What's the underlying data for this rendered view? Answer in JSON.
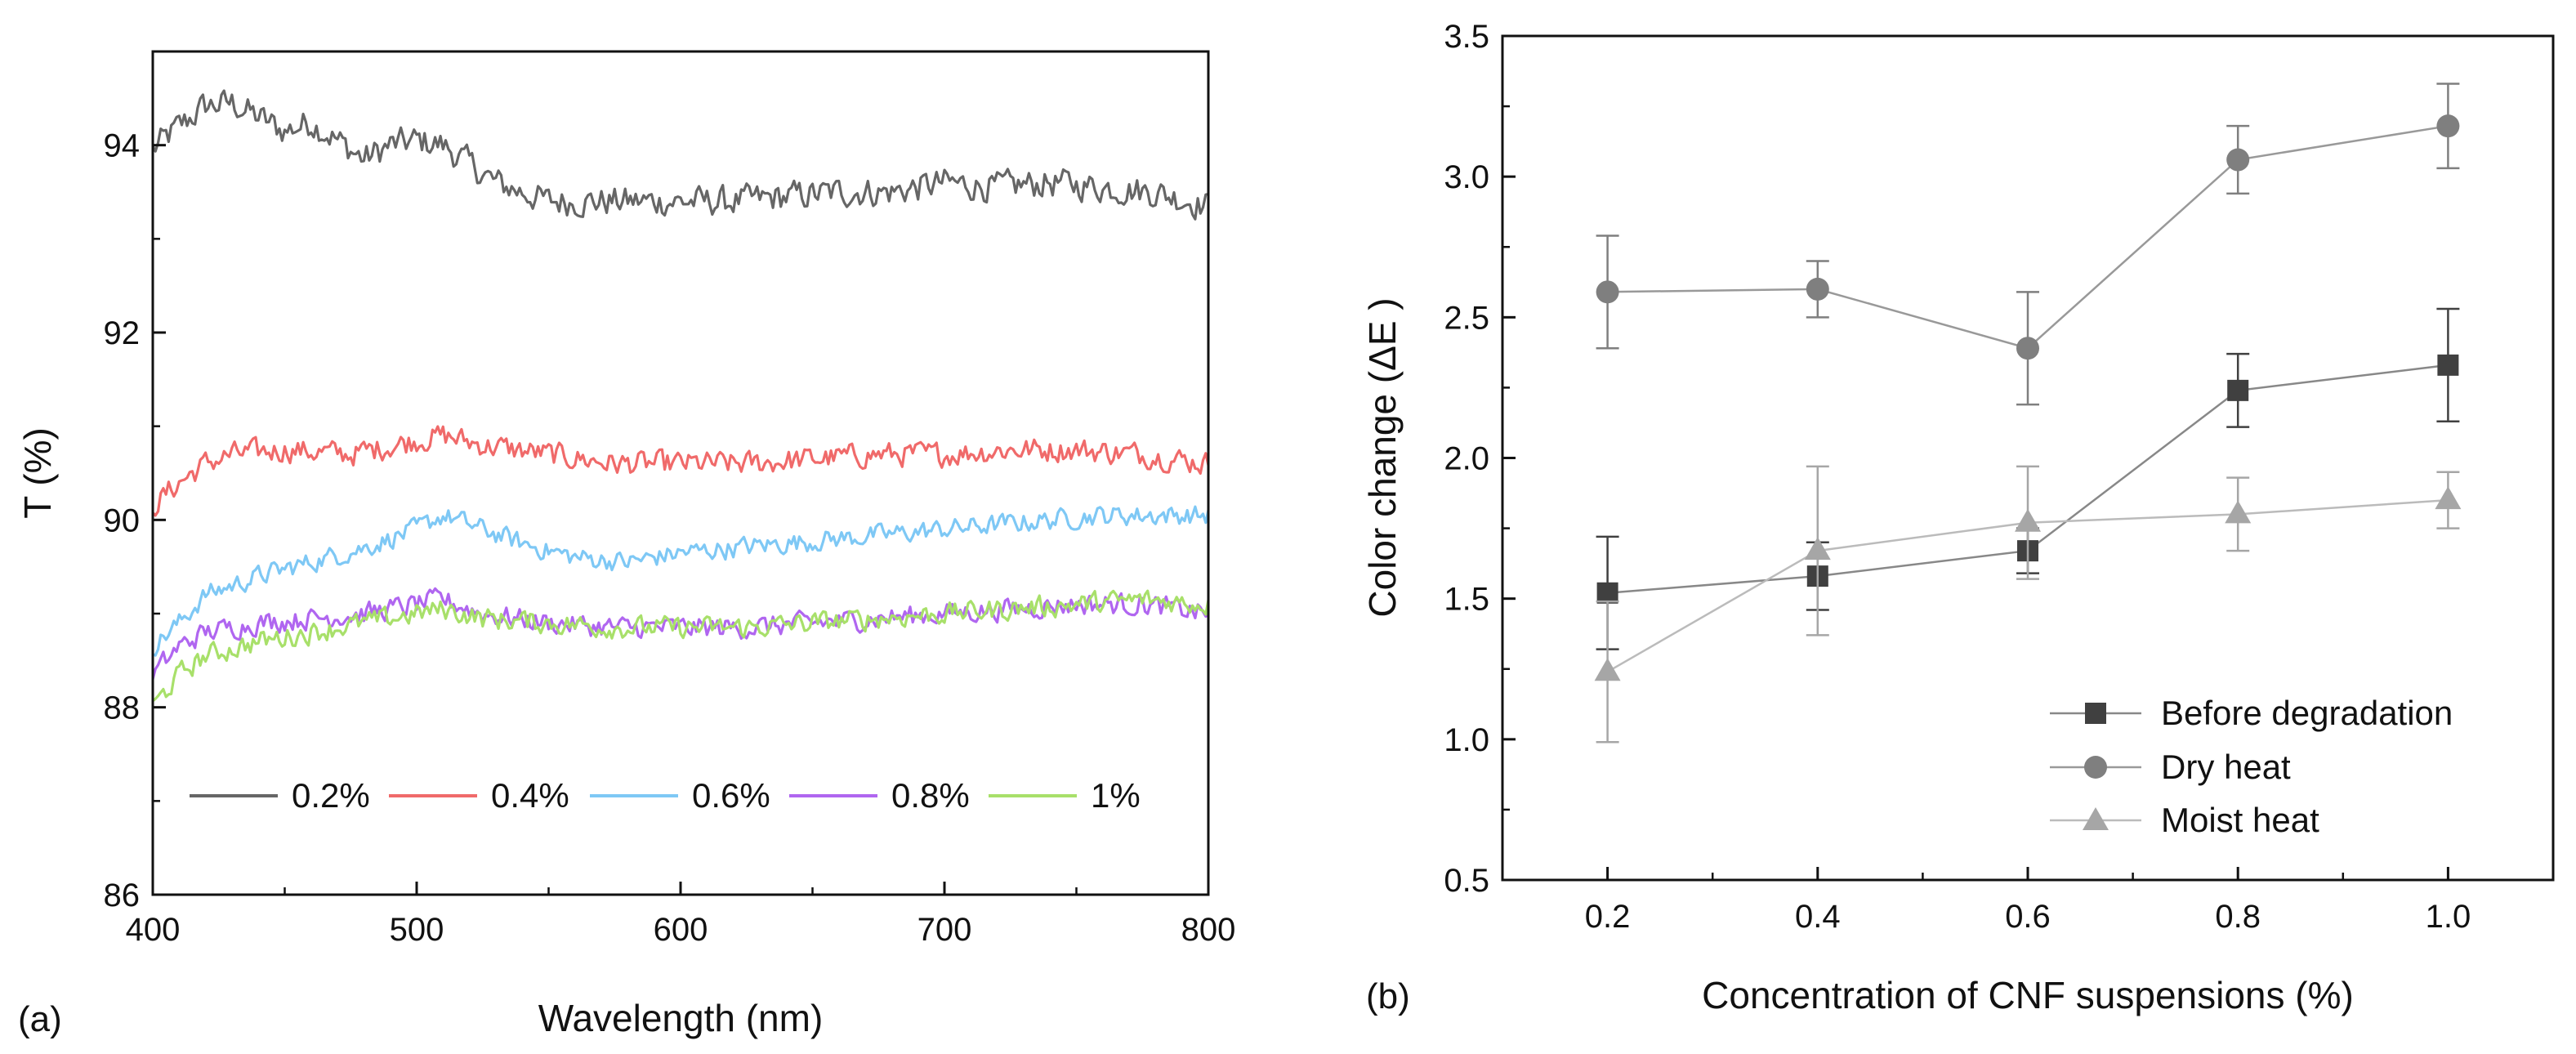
{
  "chart_data": [
    {
      "panel_label": "(a)",
      "type": "line",
      "xlabel": "Wavelength (nm)",
      "ylabel": "T (%)",
      "xlim": [
        400,
        800
      ],
      "ylim": [
        86,
        95
      ],
      "x_ticks": [
        "400",
        "500",
        "600",
        "700",
        "800"
      ],
      "y_ticks": [
        "86",
        "88",
        "90",
        "92",
        "94"
      ],
      "legend_position": "bottom-center",
      "noise_amplitude": [
        0.22,
        0.18,
        0.15,
        0.16,
        0.16
      ],
      "series": [
        {
          "name": "0.2%",
          "color": "#666666",
          "x": [
            400,
            410,
            420,
            430,
            440,
            450,
            460,
            470,
            480,
            490,
            500,
            510,
            520,
            530,
            540,
            550,
            560,
            580,
            600,
            620,
            640,
            660,
            680,
            700,
            720,
            740,
            760,
            780,
            800
          ],
          "values": [
            93.95,
            94.2,
            94.42,
            94.45,
            94.3,
            94.15,
            94.25,
            94.05,
            93.85,
            94.0,
            94.05,
            94.0,
            93.8,
            93.6,
            93.5,
            93.4,
            93.4,
            93.4,
            93.4,
            93.4,
            93.45,
            93.5,
            93.5,
            93.6,
            93.55,
            93.6,
            93.55,
            93.5,
            93.35
          ]
        },
        {
          "name": "0.4%",
          "color": "#f06a6a",
          "x": [
            400,
            410,
            420,
            430,
            450,
            475,
            500,
            510,
            525,
            550,
            575,
            600,
            625,
            650,
            675,
            700,
            725,
            750,
            775,
            800
          ],
          "values": [
            90.15,
            90.4,
            90.6,
            90.7,
            90.75,
            90.7,
            90.85,
            90.9,
            90.8,
            90.7,
            90.6,
            90.6,
            90.6,
            90.65,
            90.7,
            90.7,
            90.75,
            90.75,
            90.7,
            90.6
          ]
        },
        {
          "name": "0.6%",
          "color": "#7ec8f5",
          "x": [
            400,
            410,
            420,
            440,
            460,
            480,
            500,
            510,
            520,
            540,
            560,
            580,
            600,
            620,
            640,
            660,
            680,
            700,
            720,
            740,
            760,
            780,
            800
          ],
          "values": [
            88.65,
            88.9,
            89.2,
            89.4,
            89.55,
            89.7,
            89.9,
            90.05,
            89.95,
            89.75,
            89.6,
            89.55,
            89.65,
            89.7,
            89.75,
            89.8,
            89.85,
            89.9,
            89.95,
            90.0,
            90.05,
            90.05,
            90.05
          ]
        },
        {
          "name": "0.8%",
          "color": "#b066f0",
          "x": [
            400,
            410,
            420,
            440,
            460,
            480,
            500,
            510,
            525,
            550,
            575,
            600,
            625,
            650,
            675,
            700,
            725,
            750,
            775,
            800
          ],
          "values": [
            88.35,
            88.65,
            88.8,
            88.9,
            88.95,
            89.0,
            89.1,
            89.15,
            89.0,
            88.9,
            88.85,
            88.85,
            88.85,
            88.9,
            88.95,
            89.0,
            89.05,
            89.1,
            89.1,
            89.0
          ]
        },
        {
          "name": "1%",
          "color": "#a8e06a",
          "x": [
            400,
            410,
            420,
            440,
            460,
            480,
            500,
            510,
            525,
            550,
            575,
            600,
            625,
            650,
            675,
            700,
            725,
            750,
            775,
            800
          ],
          "values": [
            88.0,
            88.35,
            88.55,
            88.7,
            88.8,
            88.9,
            89.0,
            89.05,
            88.95,
            88.9,
            88.85,
            88.85,
            88.85,
            88.9,
            88.95,
            89.0,
            89.05,
            89.1,
            89.15,
            89.1
          ]
        }
      ]
    },
    {
      "panel_label": "(b)",
      "type": "line",
      "xlabel": "Concentration of CNF suspensions (%)",
      "ylabel": "Color change (ΔE )",
      "xlim": [
        0.1,
        1.1
      ],
      "ylim": [
        0.5,
        3.5
      ],
      "x_ticks": [
        "0.2",
        "0.4",
        "0.6",
        "0.8",
        "1.0"
      ],
      "y_ticks": [
        "0.5",
        "1.0",
        "1.5",
        "2.0",
        "2.5",
        "3.0",
        "3.5"
      ],
      "legend_position": "bottom-right",
      "x": [
        0.2,
        0.4,
        0.6,
        0.8,
        1.0
      ],
      "series": [
        {
          "name": "Before degradation",
          "marker": "square",
          "color": "#404040",
          "line_color": "#888888",
          "values": [
            1.52,
            1.58,
            1.67,
            2.24,
            2.33
          ],
          "errors": [
            0.2,
            0.12,
            0.08,
            0.13,
            0.2
          ]
        },
        {
          "name": "Dry heat",
          "marker": "circle",
          "color": "#7f7f7f",
          "line_color": "#999999",
          "values": [
            2.59,
            2.6,
            2.39,
            3.06,
            3.18
          ],
          "errors": [
            0.2,
            0.1,
            0.2,
            0.12,
            0.15
          ]
        },
        {
          "name": "Moist heat",
          "marker": "triangle",
          "color": "#a6a6a6",
          "line_color": "#bbbbbb",
          "values": [
            1.24,
            1.67,
            1.77,
            1.8,
            1.85
          ],
          "errors": [
            0.25,
            0.3,
            0.2,
            0.13,
            0.1
          ]
        }
      ]
    }
  ]
}
